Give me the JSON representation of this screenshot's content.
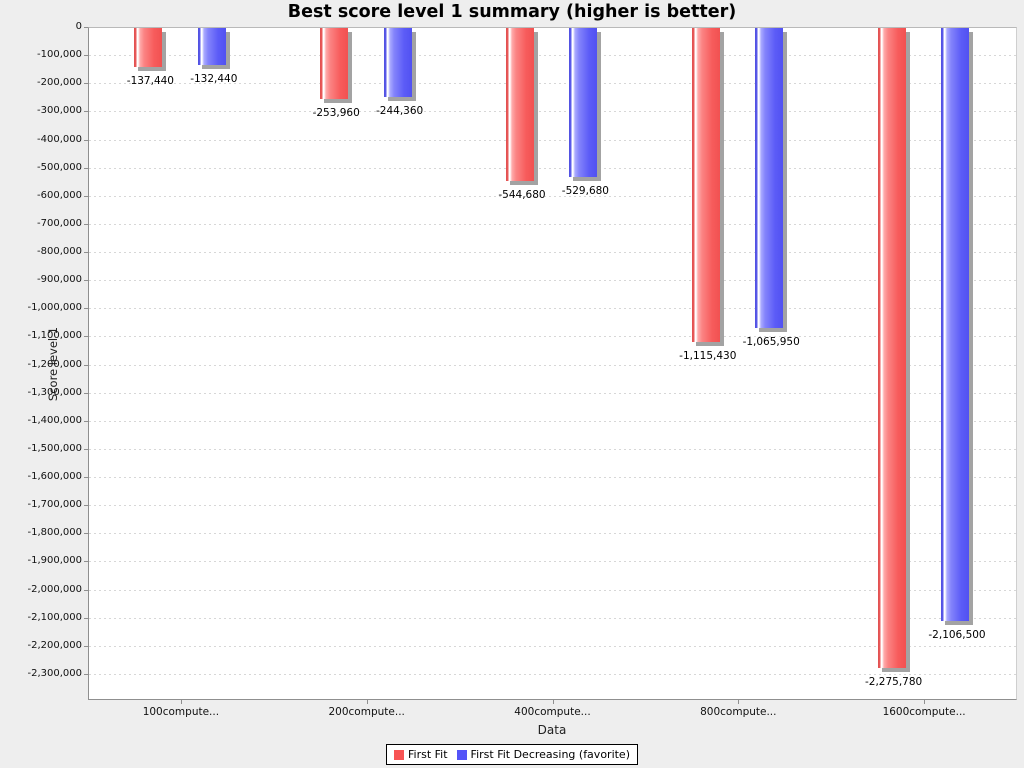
{
  "chart_data": {
    "type": "bar",
    "title": "Best score level 1 summary (higher is better)",
    "xlabel": "Data",
    "ylabel": "Score level 1",
    "categories": [
      "100compute...",
      "200compute...",
      "400compute...",
      "800compute...",
      "1600compute..."
    ],
    "series": [
      {
        "name": "First Fit",
        "color": "#f85454",
        "values": [
          -137440,
          -253960,
          -544680,
          -1115430,
          -2275780
        ],
        "value_labels": [
          "-137,440",
          "-253,960",
          "-544,680",
          "-1,115,430",
          "-2,275,780"
        ]
      },
      {
        "name": "First Fit Decreasing (favorite)",
        "color": "#5454f8",
        "values": [
          -132440,
          -244360,
          -529680,
          -1065950,
          -2106500
        ],
        "value_labels": [
          "-132,440",
          "-244,360",
          "-529,680",
          "-1,065,950",
          "-2,106,500"
        ]
      }
    ],
    "ylim": [
      -2392000,
      0
    ],
    "ytick_interval": 100000,
    "ytick_labels": [
      "0",
      "-100,000",
      "-200,000",
      "-300,000",
      "-400,000",
      "-500,000",
      "-600,000",
      "-700,000",
      "-800,000",
      "-900,000",
      "-1,000,000",
      "-1,100,000",
      "-1,200,000",
      "-1,300,000",
      "-1,400,000",
      "-1,500,000",
      "-1,600,000",
      "-1,700,000",
      "-1,800,000",
      "-1,900,000",
      "-2,000,000",
      "-2,100,000",
      "-2,200,000",
      "-2,300,000"
    ],
    "grid": "horizontal-dashed",
    "background_color": "#eeeeee",
    "plot_background_color": "#ffffff",
    "legend": {
      "position": "bottom",
      "entries": [
        "First Fit",
        "First Fit Decreasing (favorite)"
      ]
    }
  }
}
